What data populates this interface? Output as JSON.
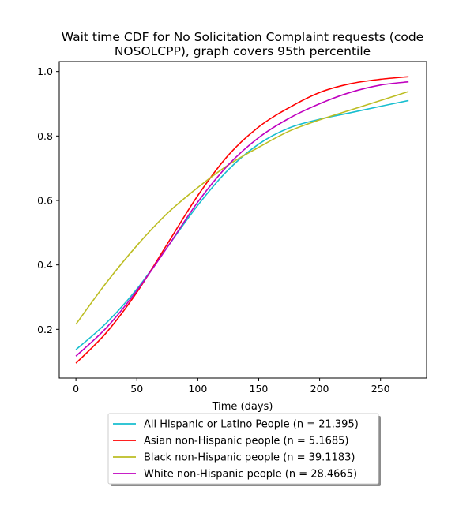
{
  "chart_data": {
    "type": "line",
    "title_lines": [
      "Wait time CDF for No Solicitation Complaint  requests (code",
      "NOSOLCPP), graph covers 95th percentile"
    ],
    "xlabel": "Time (days)",
    "ylabel": "",
    "xlim": [
      -13.7,
      287.8
    ],
    "ylim": [
      0.049,
      1.031
    ],
    "xticks": [
      0,
      50,
      100,
      150,
      200,
      250
    ],
    "yticks": [
      0.2,
      0.4,
      0.6,
      0.8,
      1.0
    ],
    "ytick_labels": [
      "0.2",
      "0.4",
      "0.6",
      "0.8",
      "1.0"
    ],
    "grid": false,
    "legend_position": "below plot, centered",
    "series": [
      {
        "name": "All Hispanic or Latino People (n = 21.395)",
        "color": "#17becf",
        "x": [
          0,
          25,
          50,
          75,
          100,
          125,
          150,
          175,
          200,
          225,
          250,
          273
        ],
        "y": [
          0.137,
          0.22,
          0.325,
          0.455,
          0.585,
          0.695,
          0.775,
          0.825,
          0.852,
          0.872,
          0.892,
          0.91
        ]
      },
      {
        "name": "Asian non-Hispanic people (n = 5.1685)",
        "color": "#ff0000",
        "x": [
          0,
          25,
          50,
          75,
          100,
          125,
          150,
          175,
          200,
          225,
          250,
          273
        ],
        "y": [
          0.095,
          0.19,
          0.315,
          0.465,
          0.615,
          0.74,
          0.828,
          0.888,
          0.935,
          0.962,
          0.976,
          0.984
        ]
      },
      {
        "name": "Black non-Hispanic people (n = 39.1183)",
        "color": "#bcbd22",
        "x": [
          0,
          25,
          50,
          75,
          100,
          125,
          150,
          175,
          200,
          225,
          250,
          273
        ],
        "y": [
          0.216,
          0.345,
          0.46,
          0.56,
          0.64,
          0.71,
          0.765,
          0.815,
          0.85,
          0.88,
          0.91,
          0.938
        ]
      },
      {
        "name": "White non-Hispanic people (n = 28.4665)",
        "color": "#bf00bf",
        "x": [
          0,
          25,
          50,
          75,
          100,
          125,
          150,
          175,
          200,
          225,
          250,
          273
        ],
        "y": [
          0.117,
          0.205,
          0.32,
          0.455,
          0.595,
          0.71,
          0.795,
          0.855,
          0.9,
          0.935,
          0.958,
          0.968
        ]
      }
    ]
  }
}
